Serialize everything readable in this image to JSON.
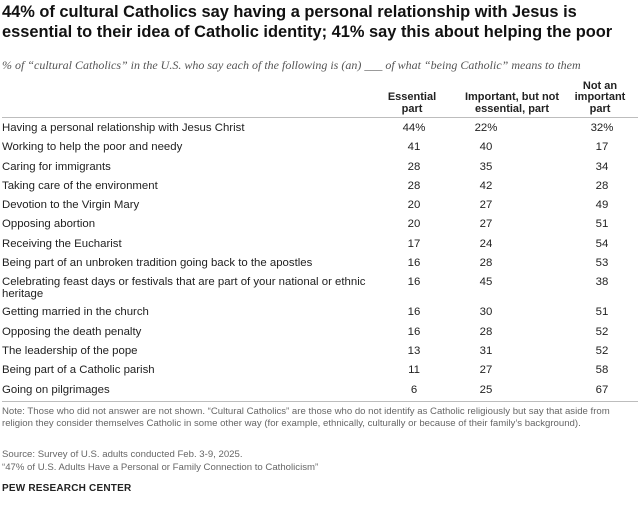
{
  "chart_data": {
    "type": "table",
    "title": "44% of cultural Catholics say having a personal relationship with Jesus is essential to their idea of Catholic identity; 41% say this about helping the poor",
    "subtitle": "% of “cultural Catholics” in the U.S. who say each of the following is (an) ___ of what “being Catholic” means to them",
    "columns": [
      "Essential part",
      "Important, but not essential, part",
      "Not an important part"
    ],
    "column_lines": [
      [
        "Essential",
        "part"
      ],
      [
        "Important, but not",
        "essential, part"
      ],
      [
        "Not an",
        "important",
        "part"
      ]
    ],
    "rows": [
      {
        "label": "Having a personal relationship with Jesus Christ",
        "values": [
          44,
          22,
          32
        ],
        "display": [
          "44%",
          "22%",
          "32%"
        ]
      },
      {
        "label": "Working to help the poor and needy",
        "values": [
          41,
          40,
          17
        ],
        "display": [
          "41",
          "40",
          "17"
        ]
      },
      {
        "label": "Caring for immigrants",
        "values": [
          28,
          35,
          34
        ],
        "display": [
          "28",
          "35",
          "34"
        ]
      },
      {
        "label": "Taking care of the environment",
        "values": [
          28,
          42,
          28
        ],
        "display": [
          "28",
          "42",
          "28"
        ]
      },
      {
        "label": "Devotion to the Virgin Mary",
        "values": [
          20,
          27,
          49
        ],
        "display": [
          "20",
          "27",
          "49"
        ]
      },
      {
        "label": "Opposing abortion",
        "values": [
          20,
          27,
          51
        ],
        "display": [
          "20",
          "27",
          "51"
        ]
      },
      {
        "label": "Receiving the Eucharist",
        "values": [
          17,
          24,
          54
        ],
        "display": [
          "17",
          "24",
          "54"
        ]
      },
      {
        "label": "Being part of an unbroken tradition going back to the apostles",
        "values": [
          16,
          28,
          53
        ],
        "display": [
          "16",
          "28",
          "53"
        ]
      },
      {
        "label": "Celebrating feast days or festivals that are part of your national or ethnic heritage",
        "values": [
          16,
          45,
          38
        ],
        "display": [
          "16",
          "45",
          "38"
        ]
      },
      {
        "label": "Getting married in the church",
        "values": [
          16,
          30,
          51
        ],
        "display": [
          "16",
          "30",
          "51"
        ]
      },
      {
        "label": "Opposing the death penalty",
        "values": [
          16,
          28,
          52
        ],
        "display": [
          "16",
          "28",
          "52"
        ]
      },
      {
        "label": "The leadership of the pope",
        "values": [
          13,
          31,
          52
        ],
        "display": [
          "13",
          "31",
          "52"
        ]
      },
      {
        "label": "Being part of a Catholic parish",
        "values": [
          11,
          27,
          58
        ],
        "display": [
          "11",
          "27",
          "58"
        ]
      },
      {
        "label": "Going on pilgrimages",
        "values": [
          6,
          25,
          67
        ],
        "display": [
          "6",
          "25",
          "67"
        ]
      }
    ]
  },
  "note": "Note: Those who did not answer are not shown. “Cultural Catholics” are those who do not identify as Catholic religiously but say that aside from religion they consider themselves Catholic in some other way (for example, ethnically, culturally or because of their family’s background).",
  "source": "Source: Survey of U.S. adults conducted Feb. 3-9, 2025.",
  "report": "“47% of U.S. Adults Have a Personal or Family Connection to Catholicism”",
  "organization": "PEW RESEARCH CENTER",
  "colors": {
    "text": "#222222",
    "muted": "#666666",
    "rule": "#bdbdbd"
  }
}
